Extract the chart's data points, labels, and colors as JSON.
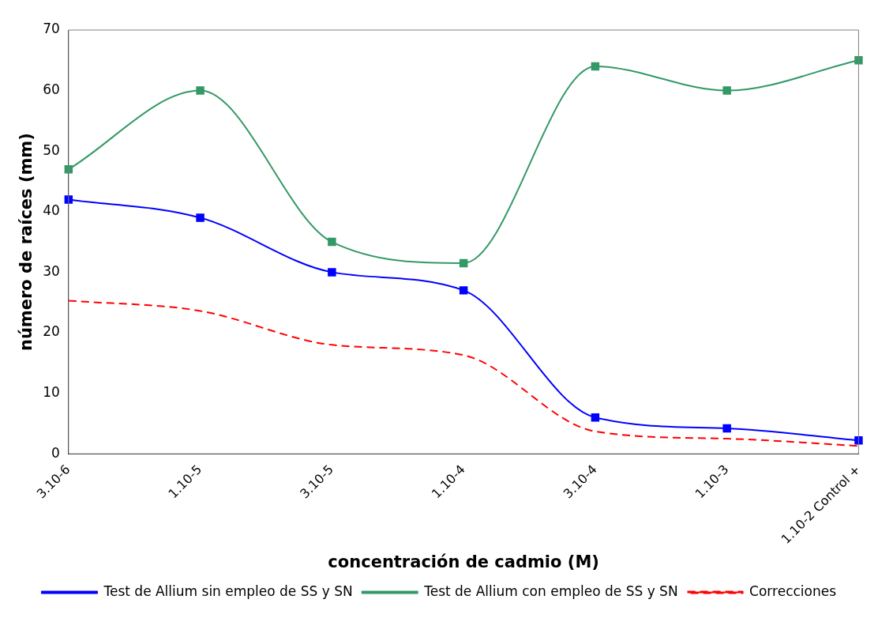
{
  "chart_data": {
    "type": "line",
    "xlabel": "concentración de cadmio (M)",
    "ylabel": "número de raíces (mm)",
    "categories": [
      "3.10-6",
      "1.10-5",
      "3.10-5",
      "1.10-4",
      "3.10-4",
      "1.10-3",
      "1.10-2 Control +"
    ],
    "series": [
      {
        "name": "Test de Allium sin empleo de SS y SN",
        "color": "#0000ff",
        "values": [
          42,
          39,
          30,
          27,
          6,
          4.2,
          2.2
        ],
        "marker": "square",
        "line_style": "solid"
      },
      {
        "name": "Test de Allium con empleo de SS y SN",
        "color": "#339966",
        "values": [
          47,
          60,
          35,
          31.5,
          64,
          60,
          65
        ],
        "marker": "square",
        "line_style": "solid"
      },
      {
        "name": "Correcciones",
        "color": "#ff0000",
        "values": [
          25.3,
          23.6,
          18,
          16.3,
          3.7,
          2.5,
          1.3
        ],
        "marker": "none",
        "line_style": "dashed"
      }
    ],
    "ylim": [
      0,
      70
    ],
    "yticks": [
      0,
      10,
      20,
      30,
      40,
      50,
      60,
      70
    ],
    "grid": false,
    "legend": "bottom"
  }
}
